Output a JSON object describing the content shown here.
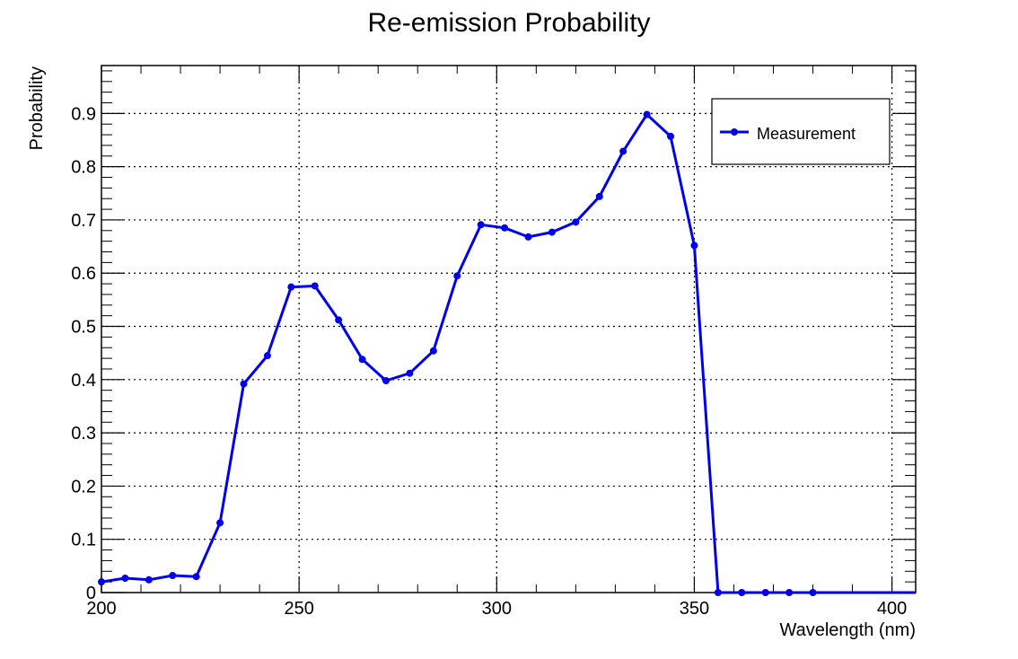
{
  "chart_data": {
    "type": "line",
    "title": "Re-emission Probability",
    "xlabel": "Wavelength (nm)",
    "ylabel": "Probability",
    "xlim": [
      200,
      406
    ],
    "ylim": [
      0,
      0.99
    ],
    "grid": true,
    "legend_position": "top-right",
    "x_ticks": [
      200,
      250,
      300,
      350,
      400
    ],
    "x_tick_labels": [
      "200",
      "250",
      "300",
      "350",
      "400"
    ],
    "y_ticks": [
      0,
      0.1,
      0.2,
      0.3,
      0.4,
      0.5,
      0.6,
      0.7,
      0.8,
      0.9
    ],
    "y_tick_labels": [
      "0",
      "0.1",
      "0.2",
      "0.3",
      "0.4",
      "0.5",
      "0.6",
      "0.7",
      "0.8",
      "0.9"
    ],
    "series": [
      {
        "name": "Measurement",
        "color": "#0000ee",
        "x": [
          200,
          206,
          212,
          218,
          224,
          230,
          236,
          242,
          248,
          254,
          260,
          266,
          272,
          278,
          284,
          290,
          296,
          302,
          308,
          314,
          320,
          326,
          332,
          338,
          344,
          350,
          356,
          362,
          368,
          374,
          380
        ],
        "y": [
          0.02,
          0.027,
          0.024,
          0.032,
          0.03,
          0.131,
          0.392,
          0.445,
          0.574,
          0.576,
          0.512,
          0.438,
          0.398,
          0.412,
          0.454,
          0.595,
          0.691,
          0.685,
          0.668,
          0.677,
          0.696,
          0.744,
          0.829,
          0.898,
          0.857,
          0.652,
          0.0,
          0.0,
          0.0,
          0.0,
          0.0
        ],
        "line_end_x": 406
      }
    ]
  }
}
